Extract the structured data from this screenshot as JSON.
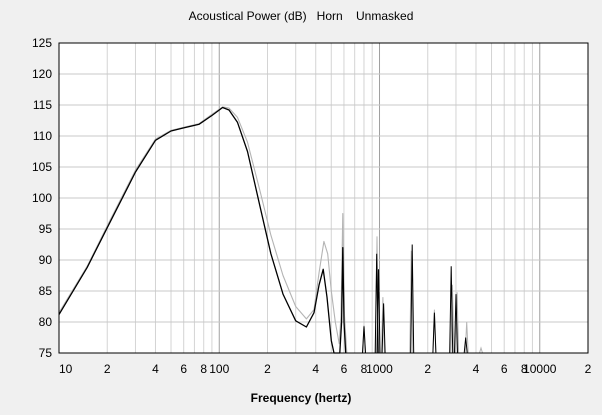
{
  "chart_data": {
    "type": "line",
    "title": "Acoustical Power (dB)   Horn    Unmasked",
    "xlabel": "Frequency (hertz)",
    "ylabel": "",
    "x_scale": "log",
    "xlim": [
      10,
      20000
    ],
    "ylim": [
      75,
      125
    ],
    "grid": true,
    "y_ticks": [
      125,
      120,
      115,
      110,
      105,
      100,
      95,
      90,
      85,
      80,
      75
    ],
    "x_tick_labels": [
      {
        "x": 10,
        "label": "10"
      },
      {
        "x": 20,
        "label": "2"
      },
      {
        "x": 40,
        "label": "4"
      },
      {
        "x": 60,
        "label": "6"
      },
      {
        "x": 80,
        "label": "8"
      },
      {
        "x": 100,
        "label": "100"
      },
      {
        "x": 200,
        "label": "2"
      },
      {
        "x": 400,
        "label": "4"
      },
      {
        "x": 600,
        "label": "6"
      },
      {
        "x": 800,
        "label": "8"
      },
      {
        "x": 1000,
        "label": "1000"
      },
      {
        "x": 2000,
        "label": "2"
      },
      {
        "x": 4000,
        "label": "4"
      },
      {
        "x": 6000,
        "label": "6"
      },
      {
        "x": 8000,
        "label": "8"
      },
      {
        "x": 10000,
        "label": "10000"
      },
      {
        "x": 20000,
        "label": "2"
      }
    ],
    "series": [
      {
        "color": "#b4b4b4",
        "points": [
          [
            10,
            81.5
          ],
          [
            15,
            89
          ],
          [
            20,
            95.5
          ],
          [
            30,
            104.5
          ],
          [
            40,
            109.5
          ],
          [
            50,
            110.9
          ],
          [
            60,
            111.4
          ],
          [
            75,
            112
          ],
          [
            90,
            113.5
          ],
          [
            105,
            114.7
          ],
          [
            115,
            114.5
          ],
          [
            130,
            113
          ],
          [
            150,
            109
          ],
          [
            180,
            101
          ],
          [
            210,
            94
          ],
          [
            250,
            87.5
          ],
          [
            300,
            82.5
          ],
          [
            350,
            80.5
          ],
          [
            390,
            82
          ],
          [
            420,
            88
          ],
          [
            450,
            93
          ],
          [
            475,
            91
          ],
          [
            500,
            85
          ],
          [
            530,
            80
          ],
          [
            560,
            76.5
          ],
          [
            575,
            81
          ],
          [
            590,
            97.5
          ],
          [
            605,
            81
          ],
          [
            625,
            75
          ]
        ]
      },
      {
        "color": "#000000",
        "points": [
          [
            10,
            81.2
          ],
          [
            15,
            88.8
          ],
          [
            20,
            95.2
          ],
          [
            30,
            104.2
          ],
          [
            40,
            109.3
          ],
          [
            50,
            110.8
          ],
          [
            60,
            111.3
          ],
          [
            75,
            111.9
          ],
          [
            90,
            113.3
          ],
          [
            105,
            114.6
          ],
          [
            115,
            114.2
          ],
          [
            130,
            112.2
          ],
          [
            150,
            107.5
          ],
          [
            180,
            98.5
          ],
          [
            210,
            91
          ],
          [
            250,
            84.5
          ],
          [
            300,
            80.2
          ],
          [
            350,
            79.2
          ],
          [
            390,
            81.5
          ],
          [
            420,
            86
          ],
          [
            445,
            88.5
          ],
          [
            470,
            84
          ],
          [
            500,
            77
          ],
          [
            520,
            75
          ],
          [
            565,
            75
          ],
          [
            580,
            80
          ],
          [
            590,
            92
          ],
          [
            600,
            80
          ],
          [
            615,
            75
          ]
        ]
      }
    ],
    "spikes": [
      {
        "color": "#b4b4b4",
        "x": 800,
        "y": 79.5
      },
      {
        "color": "#b4b4b4",
        "x": 965,
        "y": 93.8
      },
      {
        "color": "#b4b4b4",
        "x": 1050,
        "y": 84
      },
      {
        "color": "#b4b4b4",
        "x": 1580,
        "y": 91.5
      },
      {
        "color": "#b4b4b4",
        "x": 2200,
        "y": 82
      },
      {
        "color": "#b4b4b4",
        "x": 2850,
        "y": 86
      },
      {
        "color": "#b4b4b4",
        "x": 3050,
        "y": 84.8
      },
      {
        "color": "#b4b4b4",
        "x": 3500,
        "y": 80
      },
      {
        "color": "#b4b4b4",
        "x": 4300,
        "y": 75.8
      },
      {
        "color": "#000000",
        "x": 800,
        "y": 79.3
      },
      {
        "color": "#000000",
        "x": 960,
        "y": 91
      },
      {
        "color": "#000000",
        "x": 985,
        "y": 88.5
      },
      {
        "color": "#000000",
        "x": 1060,
        "y": 83
      },
      {
        "color": "#000000",
        "x": 1600,
        "y": 92.5
      },
      {
        "color": "#000000",
        "x": 2200,
        "y": 81.5
      },
      {
        "color": "#000000",
        "x": 2800,
        "y": 89
      },
      {
        "color": "#000000",
        "x": 3000,
        "y": 84.5
      },
      {
        "color": "#000000",
        "x": 3450,
        "y": 77.5
      }
    ]
  }
}
